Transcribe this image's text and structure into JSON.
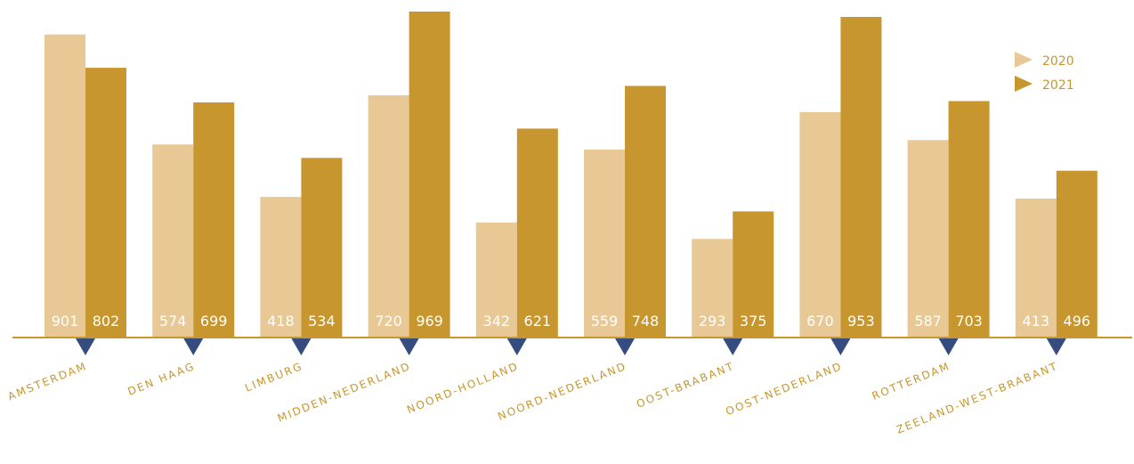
{
  "chart_data": {
    "type": "bar",
    "categories": [
      "AMSTERDAM",
      "DEN HAAG",
      "LIMBURG",
      "MIDDEN-NEDERLAND",
      "NOORD-HOLLAND",
      "NOORD-NEDERLAND",
      "OOST-BRABANT",
      "OOST-NEDERLAND",
      "ROTTERDAM",
      "ZEELAND-WEST-BRABANT"
    ],
    "series": [
      {
        "name": "2020",
        "color": "#e8c895",
        "values": [
          901,
          574,
          418,
          720,
          342,
          559,
          293,
          670,
          587,
          413
        ]
      },
      {
        "name": "2021",
        "color": "#c8962e",
        "values": [
          802,
          699,
          534,
          969,
          621,
          748,
          375,
          953,
          703,
          496
        ]
      }
    ],
    "ylim": [
      0,
      969
    ],
    "legend_position": "top-right",
    "axis_color": "#c8962e",
    "marker_color": "#344d7e",
    "grid": false
  }
}
